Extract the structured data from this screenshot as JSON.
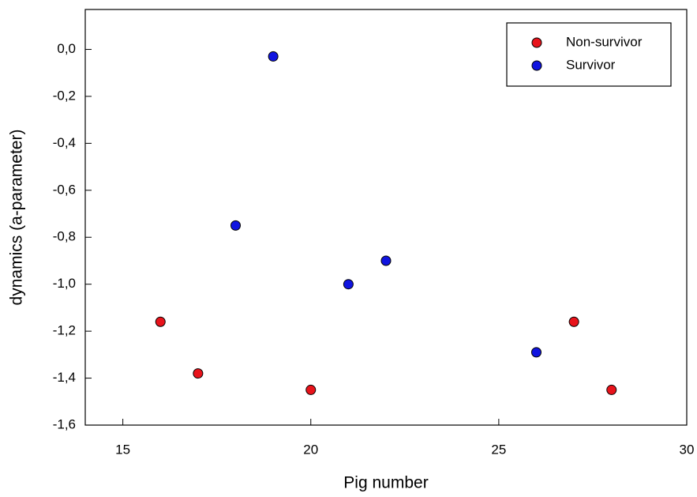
{
  "chart_data": {
    "type": "scatter",
    "x_label": "Pig number",
    "y_label": "dynamics (a-parameter)",
    "xlim": [
      14,
      30
    ],
    "xticks": [
      15,
      20,
      25,
      30
    ],
    "ylim": [
      -1.6,
      0.17
    ],
    "yticks": [
      {
        "value": 0.0,
        "label": "0,0"
      },
      {
        "value": -0.2,
        "label": "-0,2"
      },
      {
        "value": -0.4,
        "label": "-0,4"
      },
      {
        "value": -0.6,
        "label": "-0,6"
      },
      {
        "value": -0.8,
        "label": "-0,8"
      },
      {
        "value": -1.0,
        "label": "-1,0"
      },
      {
        "value": -1.2,
        "label": "-1,2"
      },
      {
        "value": -1.4,
        "label": "-1,4"
      },
      {
        "value": -1.6,
        "label": "-1,6"
      }
    ],
    "legend_position": "upper right",
    "series": [
      {
        "name": "Non-survivor",
        "color": "#e8131b",
        "x": [
          16,
          17,
          20,
          27,
          28
        ],
        "values": [
          -1.16,
          -1.38,
          -1.45,
          -1.16,
          -1.45
        ]
      },
      {
        "name": "Survivor",
        "color": "#1014e0",
        "x": [
          18,
          19,
          21,
          22,
          26
        ],
        "values": [
          -0.75,
          -0.03,
          -1.0,
          -0.9,
          -1.29
        ]
      }
    ]
  }
}
